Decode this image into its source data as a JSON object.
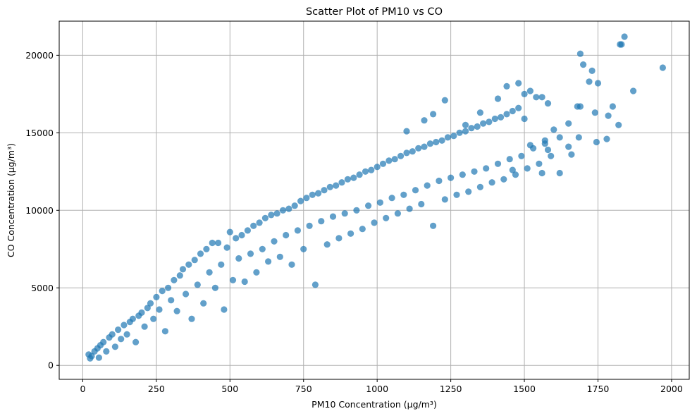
{
  "chart_data": {
    "type": "scatter",
    "title": "Scatter Plot of PM10 vs CO",
    "xlabel": "PM10 Concentration (µg/m³)",
    "ylabel": "CO Concentration (µg/m³)",
    "xlim": [
      -80,
      2060
    ],
    "ylim": [
      -900,
      22200
    ],
    "xticks": [
      0,
      250,
      500,
      750,
      1000,
      1250,
      1500,
      1750,
      2000
    ],
    "yticks": [
      0,
      5000,
      10000,
      15000,
      20000
    ],
    "grid": true,
    "marker_color": "#1f77b4",
    "marker_alpha": 0.7,
    "series": [
      {
        "points": [
          [
            20,
            700
          ],
          [
            25,
            450
          ],
          [
            30,
            600
          ],
          [
            40,
            900
          ],
          [
            50,
            1100
          ],
          [
            55,
            500
          ],
          [
            60,
            1300
          ],
          [
            70,
            1500
          ],
          [
            80,
            900
          ],
          [
            90,
            1800
          ],
          [
            100,
            2000
          ],
          [
            110,
            1200
          ],
          [
            120,
            2300
          ],
          [
            130,
            1700
          ],
          [
            140,
            2600
          ],
          [
            150,
            2000
          ],
          [
            160,
            2800
          ],
          [
            170,
            3000
          ],
          [
            180,
            1500
          ],
          [
            190,
            3200
          ],
          [
            200,
            3400
          ],
          [
            210,
            2500
          ],
          [
            220,
            3700
          ],
          [
            230,
            4000
          ],
          [
            240,
            3000
          ],
          [
            250,
            4400
          ],
          [
            260,
            3600
          ],
          [
            270,
            4800
          ],
          [
            280,
            2200
          ],
          [
            290,
            5000
          ],
          [
            300,
            4200
          ],
          [
            310,
            5500
          ],
          [
            320,
            3500
          ],
          [
            330,
            5800
          ],
          [
            340,
            6200
          ],
          [
            350,
            4600
          ],
          [
            360,
            6500
          ],
          [
            370,
            3000
          ],
          [
            380,
            6800
          ],
          [
            390,
            5200
          ],
          [
            400,
            7200
          ],
          [
            410,
            4000
          ],
          [
            420,
            7500
          ],
          [
            430,
            6000
          ],
          [
            440,
            7900
          ],
          [
            450,
            5000
          ],
          [
            460,
            7900
          ],
          [
            470,
            6500
          ],
          [
            480,
            3600
          ],
          [
            490,
            7600
          ],
          [
            500,
            8600
          ],
          [
            510,
            5500
          ],
          [
            520,
            8200
          ],
          [
            530,
            6900
          ],
          [
            540,
            8400
          ],
          [
            550,
            5400
          ],
          [
            560,
            8700
          ],
          [
            570,
            7200
          ],
          [
            580,
            9000
          ],
          [
            590,
            6000
          ],
          [
            600,
            9200
          ],
          [
            610,
            7500
          ],
          [
            620,
            9500
          ],
          [
            630,
            6700
          ],
          [
            640,
            9700
          ],
          [
            650,
            8000
          ],
          [
            660,
            9800
          ],
          [
            670,
            7000
          ],
          [
            680,
            10000
          ],
          [
            690,
            8400
          ],
          [
            700,
            10100
          ],
          [
            710,
            6500
          ],
          [
            720,
            10300
          ],
          [
            730,
            8700
          ],
          [
            740,
            10600
          ],
          [
            750,
            7500
          ],
          [
            760,
            10800
          ],
          [
            770,
            9000
          ],
          [
            780,
            11000
          ],
          [
            790,
            5200
          ],
          [
            800,
            11100
          ],
          [
            810,
            9300
          ],
          [
            820,
            11300
          ],
          [
            830,
            7800
          ],
          [
            840,
            11500
          ],
          [
            850,
            9600
          ],
          [
            860,
            11600
          ],
          [
            870,
            8200
          ],
          [
            880,
            11800
          ],
          [
            890,
            9800
          ],
          [
            900,
            12000
          ],
          [
            910,
            8500
          ],
          [
            920,
            12100
          ],
          [
            930,
            10000
          ],
          [
            940,
            12300
          ],
          [
            950,
            8800
          ],
          [
            960,
            12500
          ],
          [
            970,
            10300
          ],
          [
            980,
            12600
          ],
          [
            990,
            9200
          ],
          [
            1000,
            12800
          ],
          [
            1010,
            10500
          ],
          [
            1020,
            13000
          ],
          [
            1030,
            9500
          ],
          [
            1040,
            13200
          ],
          [
            1050,
            10800
          ],
          [
            1060,
            13300
          ],
          [
            1070,
            9800
          ],
          [
            1080,
            13500
          ],
          [
            1090,
            11000
          ],
          [
            1100,
            13700
          ],
          [
            1110,
            10100
          ],
          [
            1120,
            13800
          ],
          [
            1130,
            11300
          ],
          [
            1140,
            14000
          ],
          [
            1150,
            10400
          ],
          [
            1160,
            14100
          ],
          [
            1170,
            11600
          ],
          [
            1180,
            14300
          ],
          [
            1190,
            9000
          ],
          [
            1200,
            14400
          ],
          [
            1210,
            11900
          ],
          [
            1220,
            14500
          ],
          [
            1230,
            10700
          ],
          [
            1240,
            14700
          ],
          [
            1250,
            12100
          ],
          [
            1260,
            14800
          ],
          [
            1270,
            11000
          ],
          [
            1280,
            15000
          ],
          [
            1290,
            12300
          ],
          [
            1300,
            15100
          ],
          [
            1310,
            11200
          ],
          [
            1320,
            15300
          ],
          [
            1330,
            12500
          ],
          [
            1340,
            15400
          ],
          [
            1350,
            11500
          ],
          [
            1360,
            15600
          ],
          [
            1370,
            12700
          ],
          [
            1380,
            15700
          ],
          [
            1390,
            11800
          ],
          [
            1400,
            15900
          ],
          [
            1410,
            13000
          ],
          [
            1420,
            16000
          ],
          [
            1430,
            12000
          ],
          [
            1440,
            16200
          ],
          [
            1450,
            13300
          ],
          [
            1460,
            16400
          ],
          [
            1470,
            12300
          ],
          [
            1480,
            16600
          ],
          [
            1490,
            13500
          ],
          [
            1500,
            15900
          ],
          [
            1510,
            12700
          ],
          [
            1520,
            17700
          ],
          [
            1530,
            14000
          ],
          [
            1540,
            17300
          ],
          [
            1550,
            13000
          ],
          [
            1560,
            17300
          ],
          [
            1570,
            14500
          ],
          [
            1580,
            16900
          ],
          [
            1590,
            13500
          ],
          [
            1410,
            17200
          ],
          [
            1440,
            18000
          ],
          [
            1480,
            18200
          ],
          [
            1500,
            17500
          ],
          [
            1350,
            16300
          ],
          [
            1300,
            15500
          ],
          [
            1230,
            17100
          ],
          [
            1190,
            16200
          ],
          [
            1160,
            15800
          ],
          [
            1100,
            15100
          ],
          [
            1620,
            12400
          ],
          [
            1650,
            15600
          ],
          [
            1660,
            13600
          ],
          [
            1680,
            16700
          ],
          [
            1685,
            14700
          ],
          [
            1690,
            20100
          ],
          [
            1700,
            19400
          ],
          [
            1720,
            18300
          ],
          [
            1730,
            19000
          ],
          [
            1740,
            16300
          ],
          [
            1745,
            14400
          ],
          [
            1750,
            18200
          ],
          [
            1780,
            14600
          ],
          [
            1785,
            16100
          ],
          [
            1800,
            16700
          ],
          [
            1820,
            15500
          ],
          [
            1825,
            20700
          ],
          [
            1830,
            20700
          ],
          [
            1840,
            21200
          ],
          [
            1870,
            17700
          ],
          [
            1970,
            19200
          ],
          [
            1690,
            16700
          ],
          [
            1650,
            14100
          ],
          [
            1560,
            12400
          ],
          [
            1570,
            14300
          ],
          [
            1600,
            15200
          ],
          [
            1580,
            13900
          ],
          [
            1620,
            14700
          ],
          [
            1520,
            14200
          ],
          [
            1460,
            12600
          ]
        ]
      }
    ]
  }
}
